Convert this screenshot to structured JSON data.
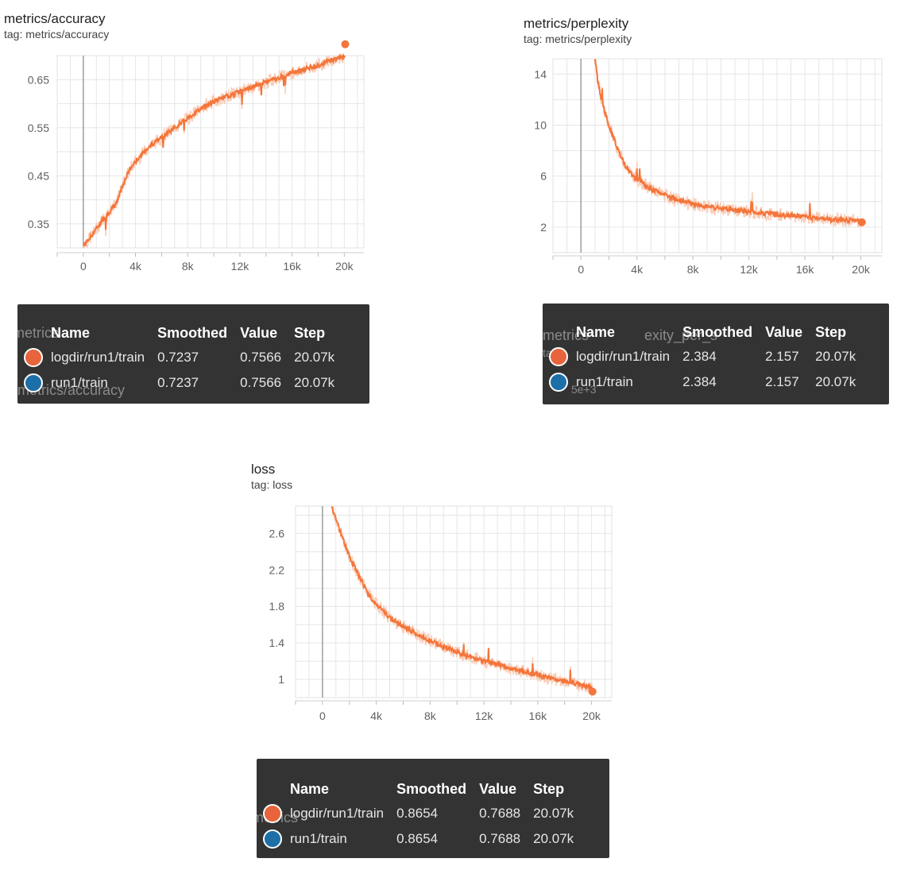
{
  "colors": {
    "series": "#f4753a",
    "series_faint": "#f9cdb8",
    "run1": "#e7643c",
    "run2": "#1d6fa8",
    "tooltip_bg": "#333333"
  },
  "charts": [
    {
      "title": "metrics/accuracy",
      "tag": "tag: metrics/accuracy",
      "tooltip": {
        "headers": [
          "Name",
          "Smoothed",
          "Value",
          "Step"
        ],
        "rows": [
          {
            "name": "logdir/run1/train",
            "smoothed": "0.7237",
            "value": "0.7566",
            "step": "20.07k"
          },
          {
            "name": "run1/train",
            "smoothed": "0.7237",
            "value": "0.7566",
            "step": "20.07k"
          }
        ]
      }
    },
    {
      "title": "metrics/perplexity",
      "tag": "tag: metrics/perplexity",
      "tooltip": {
        "headers": [
          "Name",
          "Smoothed",
          "Value",
          "Step"
        ],
        "rows": [
          {
            "name": "logdir/run1/train",
            "smoothed": "2.384",
            "value": "2.157",
            "step": "20.07k"
          },
          {
            "name": "run1/train",
            "smoothed": "2.384",
            "value": "2.157",
            "step": "20.07k"
          }
        ]
      }
    },
    {
      "title": "loss",
      "tag": "tag: loss",
      "tooltip": {
        "headers": [
          "Name",
          "Smoothed",
          "Value",
          "Step"
        ],
        "rows": [
          {
            "name": "logdir/run1/train",
            "smoothed": "0.8654",
            "value": "0.7688",
            "step": "20.07k"
          },
          {
            "name": "run1/train",
            "smoothed": "0.8654",
            "value": "0.7688",
            "step": "20.07k"
          }
        ]
      }
    }
  ],
  "ghost_text": {
    "accuracy_left": "metrics",
    "accuracy_bottom": "metrics/accuracy",
    "perplexity_left": "metrics",
    "perplexity_mid": "exity_per_s",
    "perplexity_tag": "tag",
    "perplexity_num": "5e+3",
    "loss_left": "metrics"
  },
  "chart_data": [
    {
      "type": "line",
      "title": "metrics/accuracy",
      "xlim": [
        -2000,
        21500
      ],
      "ylim": [
        0.3,
        0.7
      ],
      "x_ticks": [
        0,
        4000,
        8000,
        12000,
        16000,
        20000
      ],
      "x_tick_labels": [
        "0",
        "4k",
        "8k",
        "12k",
        "16k",
        "20k"
      ],
      "y_ticks": [
        0.35,
        0.45,
        0.55,
        0.65
      ],
      "y_tick_labels": [
        "0.35",
        "0.45",
        "0.55",
        "0.65"
      ],
      "grid": true,
      "series": [
        {
          "name": "logdir/run1/train",
          "x": [
            0,
            500,
            1000,
            1500,
            2000,
            2500,
            3000,
            3500,
            4000,
            5000,
            6000,
            7000,
            8000,
            9000,
            10000,
            11000,
            12000,
            13000,
            14000,
            15000,
            16000,
            17000,
            18000,
            19000,
            20000,
            20070
          ],
          "y": [
            0.305,
            0.32,
            0.34,
            0.36,
            0.375,
            0.39,
            0.43,
            0.46,
            0.48,
            0.51,
            0.53,
            0.55,
            0.57,
            0.59,
            0.605,
            0.615,
            0.625,
            0.635,
            0.645,
            0.655,
            0.665,
            0.672,
            0.68,
            0.69,
            0.7,
            0.7237
          ]
        }
      ]
    },
    {
      "type": "line",
      "title": "metrics/perplexity",
      "xlim": [
        -2000,
        21500
      ],
      "ylim": [
        0.0,
        15.2
      ],
      "x_ticks": [
        0,
        4000,
        8000,
        12000,
        16000,
        20000
      ],
      "x_tick_labels": [
        "0",
        "4k",
        "8k",
        "12k",
        "16k",
        "20k"
      ],
      "y_ticks": [
        2,
        6,
        10,
        14
      ],
      "y_tick_labels": [
        "2",
        "6",
        "10",
        "14"
      ],
      "grid": true,
      "series": [
        {
          "name": "logdir/run1/train",
          "x": [
            1000,
            1200,
            1500,
            2000,
            2500,
            3000,
            3500,
            4000,
            5000,
            6000,
            7000,
            8000,
            9000,
            10000,
            12000,
            14000,
            16000,
            18000,
            20000,
            20070
          ],
          "y": [
            15.2,
            13.5,
            11.8,
            10.0,
            8.5,
            7.2,
            6.3,
            5.8,
            5.0,
            4.5,
            4.1,
            3.8,
            3.6,
            3.45,
            3.2,
            3.0,
            2.8,
            2.6,
            2.45,
            2.384
          ]
        }
      ]
    },
    {
      "type": "line",
      "title": "loss",
      "xlim": [
        -2000,
        21500
      ],
      "ylim": [
        0.8,
        2.9
      ],
      "x_ticks": [
        0,
        4000,
        8000,
        12000,
        16000,
        20000
      ],
      "x_tick_labels": [
        "0",
        "4k",
        "8k",
        "12k",
        "16k",
        "20k"
      ],
      "y_ticks": [
        1.0,
        1.4,
        1.8,
        2.2,
        2.6
      ],
      "y_tick_labels": [
        "1",
        "1.4",
        "1.8",
        "2.2",
        "2.6"
      ],
      "grid": true,
      "series": [
        {
          "name": "logdir/run1/train",
          "x": [
            700,
            1000,
            1500,
            2000,
            2500,
            3000,
            3500,
            4000,
            5000,
            6000,
            7000,
            8000,
            9000,
            10000,
            12000,
            14000,
            16000,
            18000,
            20000,
            20070
          ],
          "y": [
            2.9,
            2.75,
            2.55,
            2.35,
            2.2,
            2.05,
            1.92,
            1.82,
            1.68,
            1.58,
            1.5,
            1.42,
            1.36,
            1.3,
            1.2,
            1.12,
            1.05,
            0.98,
            0.91,
            0.8654
          ]
        }
      ]
    }
  ]
}
